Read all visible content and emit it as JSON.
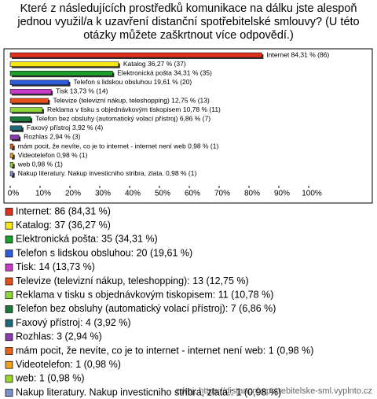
{
  "chart_data": {
    "type": "bar",
    "orientation": "horizontal",
    "title": "Které z následujících prostředků komunikace na dálku jste alespoň jednou využil/a k uzavření distanční spotřebitelské smlouvy? (U této otázky můžete zaškrtnout více odpovědí.)",
    "values": [
      84.31,
      36.27,
      34.31,
      19.61,
      13.73,
      12.75,
      10.78,
      6.86,
      3.92,
      2.94,
      0.98,
      0.98,
      0.98,
      0.98
    ],
    "value_labels": [
      "Internet 84,31 % (86)",
      "Katalog 36,27 % (37)",
      "Elektronická pošta 34,31 % (35)",
      "Telefon s lidskou obsluhou 19,61 % (20)",
      "Tisk 13,73 % (14)",
      "Televize (televizní nákup, teleshopping) 12,75 % (13)",
      "Reklama v tisku s objednávkovým tiskopisem 10,78 % (11)",
      "Telefon bez obsluhy (automatický volací přístroj) 6,86 % (7)",
      "Faxový přístroj 3,92 % (4)",
      "Rozhlas 2,94 % (3)",
      "mám pocit, že nevíte, co je to internet - internet není web 0,98 % (1)",
      "Videotelefon 0,98 % (1)",
      "web 0,98 % (1)",
      "Nakup literatury. Nakup investicniho stribra, zlata. 0,98 % (1)"
    ],
    "legend_labels": [
      "Internet: 86 (84,31 %)",
      "Katalog: 37 (36,27 %)",
      "Elektronická pošta: 35 (34,31 %)",
      "Telefon s lidskou obsluhou: 20 (19,61 %)",
      "Tisk: 14 (13,73 %)",
      "Televize (televizní nákup, teleshopping): 13 (12,75 %)",
      "Reklama v tisku s objednávkovým tiskopisem: 11 (10,78 %)",
      "Telefon bez obsluhy (automatický volací přístroj): 7 (6,86 %)",
      "Faxový přístroj: 4 (3,92 %)",
      "Rozhlas: 3 (2,94 %)",
      "mám pocit, že nevíte, co je to internet - internet není web: 1 (0,98 %)",
      "Videotelefon: 1 (0,98 %)",
      "web: 1 (0,98 %)",
      "Nakup literatury. Nakup investicniho stribra, zlata.: 1 (0,98 %)"
    ],
    "colors": [
      "#e0301e",
      "#f5e616",
      "#1e9e2a",
      "#2f5bd6",
      "#c83cc8",
      "#e8501a",
      "#8fd63a",
      "#1a7a3a",
      "#1f6a7a",
      "#8a3cb0",
      "#e8641a",
      "#f0a020",
      "#9ad628",
      "#7a90c8"
    ],
    "xlim": [
      0,
      100
    ],
    "xticks": [
      {
        "value": 0,
        "label": "0%"
      },
      {
        "value": 10,
        "label": "10%"
      },
      {
        "value": 20,
        "label": "20%"
      },
      {
        "value": 30,
        "label": "30%"
      },
      {
        "value": 40,
        "label": "40%"
      },
      {
        "value": 50,
        "label": "50%"
      },
      {
        "value": 60,
        "label": "60%"
      },
      {
        "value": 70,
        "label": "70%"
      },
      {
        "value": 80,
        "label": "80%"
      },
      {
        "value": 90,
        "label": "90%"
      },
      {
        "value": 100,
        "label": "100%"
      }
    ],
    "source": "zdroj: https://distancni-spotrebitelske-sml.vyplnto.cz"
  }
}
